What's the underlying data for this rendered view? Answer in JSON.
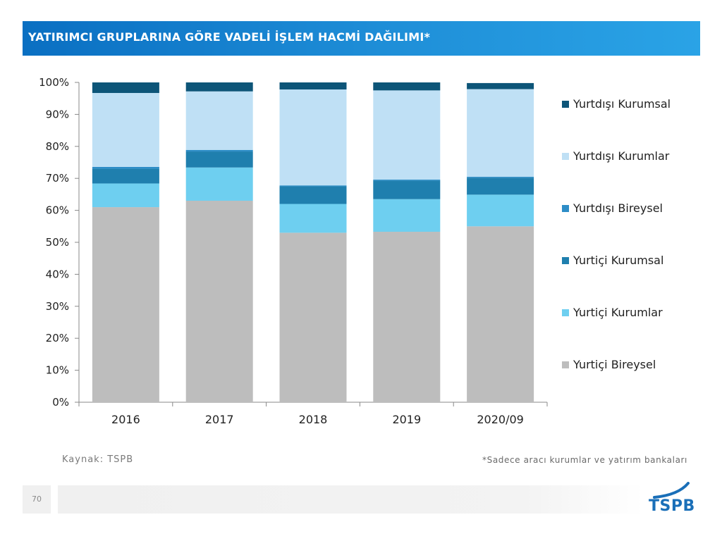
{
  "header": {
    "title": "YATIRIMCI GRUPLARINA GÖRE VADELİ İŞLEM HACMİ DAĞILIMI*"
  },
  "footer": {
    "source": "Kaynak: TSPB",
    "note": "*Sadece aracı kurumlar ve yatırım bankaları",
    "page_number": "70",
    "logo_text": "TSPB"
  },
  "colors": {
    "title_bar": "#1a86d0",
    "axis": "#888888"
  },
  "chart_data": {
    "type": "bar",
    "stacked": true,
    "title": "",
    "xlabel": "",
    "ylabel": "",
    "ylim": [
      0,
      100
    ],
    "categories": [
      "2016",
      "2017",
      "2018",
      "2019",
      "2020/09"
    ],
    "y_ticks": [
      "0%",
      "10%",
      "20%",
      "30%",
      "40%",
      "50%",
      "60%",
      "70%",
      "80%",
      "90%",
      "100%"
    ],
    "legend_position": "right",
    "series": [
      {
        "name": "Yurtiçi Bireysel",
        "color": "#bdbdbd",
        "values": [
          61,
          63,
          53,
          53.3,
          55
        ]
      },
      {
        "name": "Yurtiçi Kurumlar",
        "color": "#6ecff0",
        "values": [
          7.4,
          10.4,
          9,
          10.2,
          9.9
        ]
      },
      {
        "name": "Yurtiçi Kurumsal",
        "color": "#1f7fae",
        "values": [
          4.6,
          5,
          5.5,
          5.8,
          5.3
        ]
      },
      {
        "name": "Yurtdışı Bireysel",
        "color": "#2d8dc7",
        "values": [
          0.6,
          0.5,
          0.3,
          0.3,
          0.3
        ]
      },
      {
        "name": "Yurtdışı Kurumlar",
        "color": "#bfe0f5",
        "values": [
          23.1,
          18.3,
          30,
          27.9,
          27.4
        ]
      },
      {
        "name": "Yurtdışı Kurumsal",
        "color": "#0d5578",
        "values": [
          3.3,
          2.8,
          2.2,
          2.5,
          1.9
        ]
      }
    ],
    "legend_order": [
      "Yurtdışı Kurumsal",
      "Yurtdışı Kurumlar",
      "Yurtdışı Bireysel",
      "Yurtiçi Kurumsal",
      "Yurtiçi Kurumlar",
      "Yurtiçi Bireysel"
    ]
  }
}
